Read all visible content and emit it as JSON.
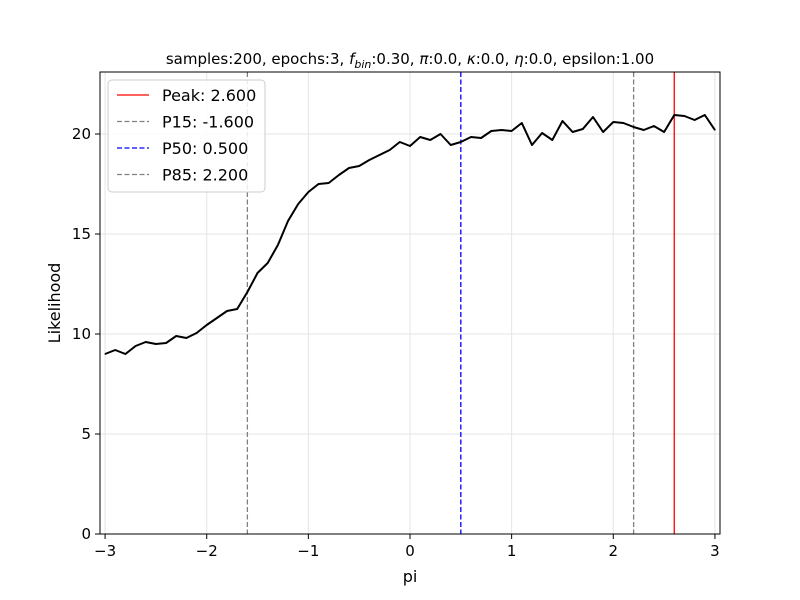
{
  "chart_data": {
    "type": "line",
    "title_parts": {
      "t1": "samples:200, epochs:3, ",
      "f": "f",
      "bin": "bin",
      "t2": ":0.30, ",
      "pi": "π",
      "t3": ":0.0, ",
      "kappa": "κ",
      "t4": ":0.0, ",
      "eta": "η",
      "t5": ":0.0, epsilon:1.00"
    },
    "xlabel": "pi",
    "ylabel": "Likelihood",
    "xlim": [
      -3.05,
      3.05
    ],
    "ylim": [
      0,
      23.1
    ],
    "xticks": [
      -3,
      -2,
      -1,
      0,
      1,
      2,
      3
    ],
    "xtick_labels": [
      "−3",
      "−2",
      "−1",
      "0",
      "1",
      "2",
      "3"
    ],
    "yticks": [
      0,
      5,
      10,
      15,
      20
    ],
    "ytick_labels": [
      "0",
      "5",
      "10",
      "15",
      "20"
    ],
    "grid": true,
    "legend_position": "upper-left",
    "series": [
      {
        "color": "#000000",
        "x": [
          -3.0,
          -2.9,
          -2.8,
          -2.7,
          -2.6,
          -2.5,
          -2.4,
          -2.3,
          -2.2,
          -2.1,
          -2.0,
          -1.9,
          -1.8,
          -1.7,
          -1.6,
          -1.5,
          -1.4,
          -1.3,
          -1.2,
          -1.1,
          -1.0,
          -0.9,
          -0.8,
          -0.7,
          -0.6,
          -0.5,
          -0.4,
          -0.3,
          -0.2,
          -0.1,
          0.0,
          0.1,
          0.2,
          0.3,
          0.4,
          0.5,
          0.6,
          0.7,
          0.8,
          0.9,
          1.0,
          1.1,
          1.2,
          1.3,
          1.4,
          1.5,
          1.6,
          1.7,
          1.8,
          1.9,
          2.0,
          2.1,
          2.2,
          2.3,
          2.4,
          2.5,
          2.6,
          2.7,
          2.8,
          2.9,
          3.0
        ],
        "y": [
          9.0,
          9.2,
          9.0,
          9.4,
          9.6,
          9.5,
          9.55,
          9.9,
          9.8,
          10.05,
          10.45,
          10.8,
          11.15,
          11.25,
          12.1,
          13.05,
          13.55,
          14.45,
          15.65,
          16.5,
          17.1,
          17.5,
          17.55,
          17.95,
          18.3,
          18.4,
          18.7,
          18.95,
          19.2,
          19.6,
          19.4,
          19.85,
          19.7,
          20.0,
          19.45,
          19.6,
          19.85,
          19.8,
          20.15,
          20.2,
          20.15,
          20.55,
          19.45,
          20.05,
          19.7,
          20.65,
          20.1,
          20.25,
          20.85,
          20.1,
          20.6,
          20.55,
          20.35,
          20.2,
          20.4,
          20.1,
          20.95,
          20.9,
          20.7,
          20.95,
          20.2
        ]
      }
    ],
    "vlines": [
      {
        "label": "Peak: 2.600",
        "x": 2.6,
        "color": "#ff0000",
        "style": "solid"
      },
      {
        "label": "P15: -1.600",
        "x": -1.6,
        "color": "#808080",
        "style": "dashed"
      },
      {
        "label": "P50: 0.500",
        "x": 0.5,
        "color": "#0000ff",
        "style": "dashed"
      },
      {
        "label": "P85: 2.200",
        "x": 2.2,
        "color": "#808080",
        "style": "dashed"
      }
    ]
  }
}
